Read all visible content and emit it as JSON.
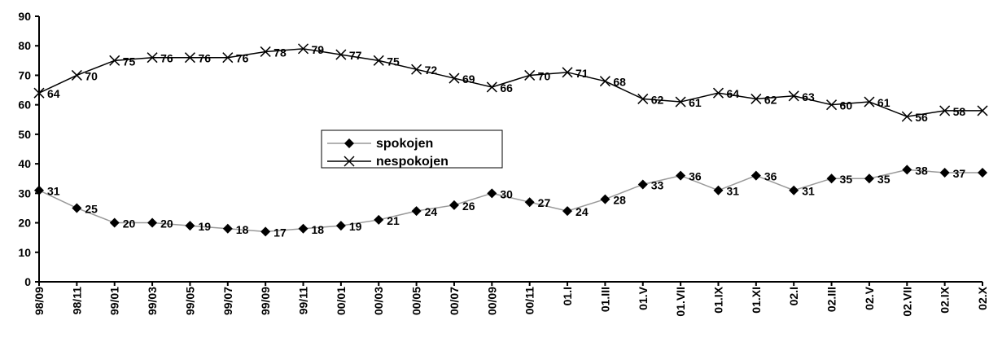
{
  "chart_data": {
    "type": "line",
    "categories": [
      "98/09",
      "98/11",
      "99/01",
      "99/03",
      "99/05",
      "99/07",
      "99/09",
      "99/11",
      "00/01",
      "00/03",
      "00/05",
      "00/07",
      "00/09",
      "00/11",
      "01.I",
      "01.III",
      "01.V",
      "01.VII",
      "01.IX",
      "01.XI",
      "02.I",
      "02.III",
      "02.V",
      "02.VII",
      "02.IX",
      "02.X"
    ],
    "series": [
      {
        "name": "spokojen",
        "color": "#000000",
        "line_color": "#999999",
        "marker": "diamond",
        "values": [
          31,
          25,
          20,
          20,
          19,
          18,
          17,
          18,
          19,
          21,
          24,
          26,
          30,
          27,
          24,
          28,
          33,
          36,
          31,
          36,
          31,
          35,
          35,
          38,
          37,
          37
        ]
      },
      {
        "name": "nespokojen",
        "color": "#000000",
        "line_color": "#000000",
        "marker": "x",
        "values": [
          64,
          70,
          75,
          76,
          76,
          76,
          78,
          79,
          77,
          75,
          72,
          69,
          66,
          70,
          71,
          68,
          62,
          61,
          64,
          62,
          63,
          60,
          61,
          56,
          58,
          58
        ]
      }
    ],
    "ylim": [
      0,
      90
    ],
    "yticks": [
      0,
      10,
      20,
      30,
      40,
      50,
      60,
      70,
      80,
      90
    ],
    "grid": false
  }
}
